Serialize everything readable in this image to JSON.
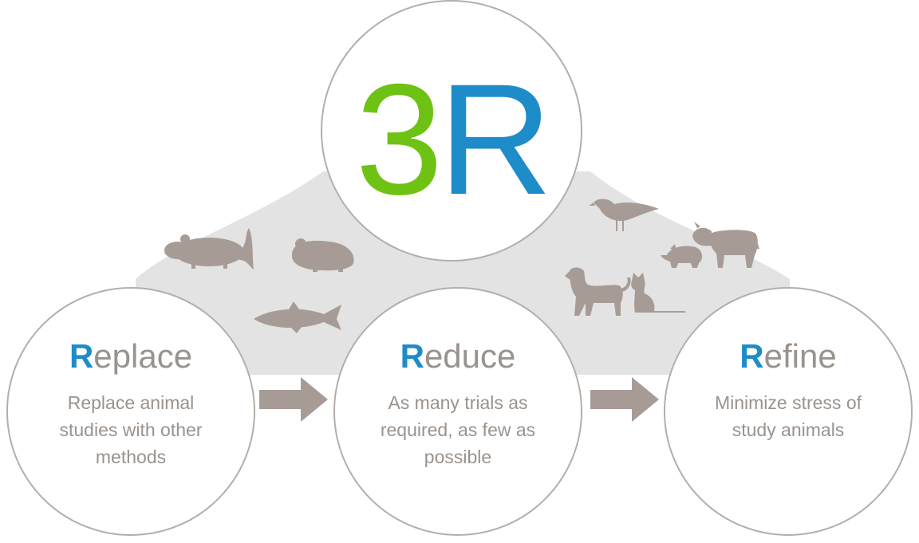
{
  "colors": {
    "green": "#6dc214",
    "blue": "#1e8cc8",
    "gray_text": "#9a928c",
    "circle_border": "#b5aea8",
    "band": "#e3e3e3",
    "animal": "#a79c95",
    "arrow": "#a79c95"
  },
  "logo": {
    "digit": "3",
    "letter": "R"
  },
  "circles": [
    {
      "id": "replace",
      "initial": "R",
      "rest": "eplace",
      "description": "Replace animal\nstudies with other\nmethods"
    },
    {
      "id": "reduce",
      "initial": "R",
      "rest": "educe",
      "description": "As many trials as\nrequired, as few as\npossible"
    },
    {
      "id": "refine",
      "initial": "R",
      "rest": "efine",
      "description": "Minimize stress of\nstudy animals"
    }
  ],
  "animals": [
    "rat-icon",
    "guinea-pig-icon",
    "fish-icon",
    "bird-icon",
    "cow-icon",
    "pig-icon",
    "dog-icon",
    "cat-icon"
  ]
}
